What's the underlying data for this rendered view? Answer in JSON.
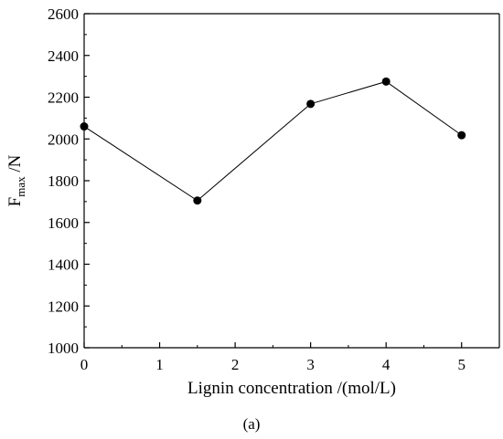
{
  "chart_data": {
    "type": "line",
    "title": "",
    "xlabel": "Lignin concentration /(mol/L)",
    "ylabel_main": "F",
    "ylabel_sub": "max",
    "ylabel_tail": " /N",
    "xlim": [
      0,
      5.5
    ],
    "ylim": [
      1000,
      2600
    ],
    "x_ticks": [
      0,
      1,
      2,
      3,
      4,
      5
    ],
    "y_ticks": [
      1000,
      1200,
      1400,
      1600,
      1800,
      2000,
      2200,
      2400,
      2600
    ],
    "series": [
      {
        "x": [
          0,
          1.5,
          3,
          4,
          5
        ],
        "y": [
          2060,
          1705,
          2168,
          2275,
          2018
        ],
        "marker": "circle",
        "color": "#000000"
      }
    ],
    "grid": false,
    "legend": "none"
  },
  "caption": {
    "label": "(a)"
  }
}
